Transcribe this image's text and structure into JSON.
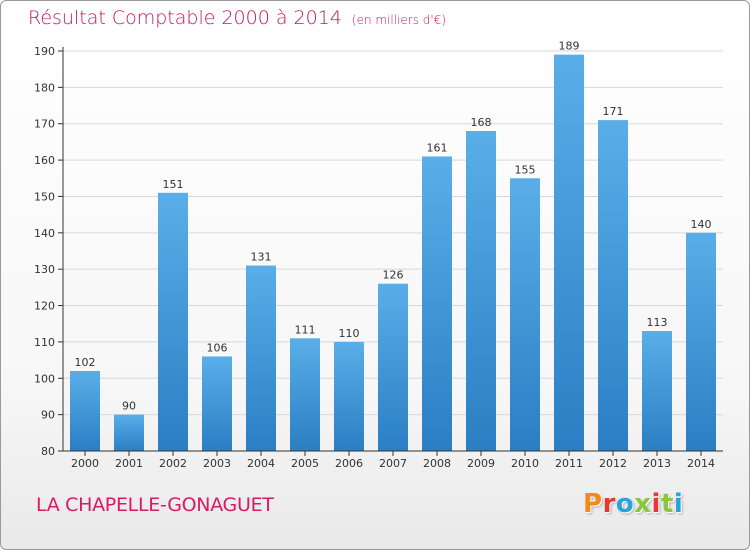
{
  "header": {
    "title": "Résultat Comptable 2000 à 2014",
    "unit": "(en milliers d'€)"
  },
  "footer": {
    "commune": "LA CHAPELLE-GONAGUET",
    "brand_letters": [
      "P",
      "r",
      "o",
      "x",
      "i",
      "t",
      "i"
    ],
    "brand_colors": [
      "#f08a1c",
      "#e53935",
      "#29a3d9",
      "#8cc63f",
      "#e53935",
      "#8cc63f",
      "#29a3d9"
    ]
  },
  "chart_data": {
    "type": "bar",
    "title": "Résultat Comptable 2000 à 2014",
    "subtitle": "(en milliers d'€)",
    "categories": [
      "2000",
      "2001",
      "2002",
      "2003",
      "2004",
      "2005",
      "2006",
      "2007",
      "2008",
      "2009",
      "2010",
      "2011",
      "2012",
      "2013",
      "2014"
    ],
    "values": [
      102,
      90,
      151,
      106,
      131,
      111,
      110,
      126,
      161,
      168,
      155,
      189,
      171,
      113,
      140
    ],
    "ylim": [
      80,
      190
    ],
    "yticks": [
      80,
      90,
      100,
      110,
      120,
      130,
      140,
      150,
      160,
      170,
      180,
      190
    ],
    "grid": true,
    "bar_color_top": "#5aaee8",
    "bar_color_bottom": "#2a7fc4",
    "label_color": "#333333",
    "grid_color": "#d8d8d8",
    "axis_color": "#333333"
  }
}
